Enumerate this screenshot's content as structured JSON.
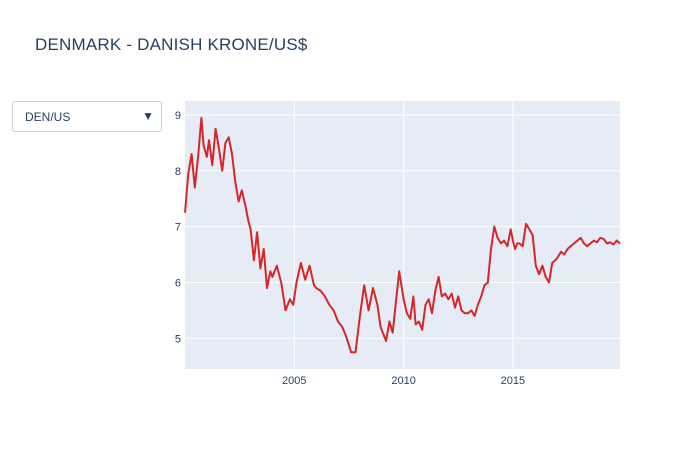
{
  "header": {
    "title": "DENMARK - DANISH KRONE/US$"
  },
  "selector": {
    "selected": "DEN/US",
    "arrow_icon": "triangle-down-icon"
  },
  "chart_data": {
    "type": "line",
    "title": "DENMARK - DANISH KRONE/US$",
    "xlabel": "",
    "ylabel": "",
    "xlim": [
      2000.0,
      2019.9
    ],
    "ylim": [
      4.45,
      9.25
    ],
    "x_ticks": [
      2005,
      2010,
      2015
    ],
    "x_tick_labels": [
      "2005",
      "2010",
      "2015"
    ],
    "y_ticks": [
      5,
      6,
      7,
      8,
      9
    ],
    "y_tick_labels": [
      "5",
      "6",
      "7",
      "8",
      "9"
    ],
    "grid": true,
    "legend": "none",
    "colors": {
      "line": "#d62728",
      "plot_bg": "#e5ecf6",
      "grid": "#ffffff"
    },
    "series": [
      {
        "x": [
          2000.0,
          2000.15,
          2000.3,
          2000.45,
          2000.6,
          2000.75,
          2000.85,
          2001.0,
          2001.1,
          2001.25,
          2001.4,
          2001.55,
          2001.7,
          2001.85,
          2002.0,
          2002.15,
          2002.3,
          2002.45,
          2002.6,
          2002.75,
          2002.9,
          2003.0,
          2003.15,
          2003.3,
          2003.45,
          2003.6,
          2003.75,
          2003.9,
          2004.0,
          2004.2,
          2004.4,
          2004.6,
          2004.8,
          2004.95,
          2005.1,
          2005.3,
          2005.5,
          2005.7,
          2005.9,
          2006.0,
          2006.2,
          2006.4,
          2006.6,
          2006.8,
          2007.0,
          2007.2,
          2007.4,
          2007.6,
          2007.8,
          2008.0,
          2008.2,
          2008.4,
          2008.6,
          2008.8,
          2008.95,
          2009.1,
          2009.2,
          2009.35,
          2009.5,
          2009.65,
          2009.8,
          2010.0,
          2010.15,
          2010.3,
          2010.45,
          2010.55,
          2010.7,
          2010.85,
          2011.0,
          2011.15,
          2011.3,
          2011.45,
          2011.6,
          2011.75,
          2011.9,
          2012.05,
          2012.2,
          2012.35,
          2012.5,
          2012.65,
          2012.8,
          2012.95,
          2013.1,
          2013.25,
          2013.4,
          2013.55,
          2013.7,
          2013.85,
          2014.0,
          2014.15,
          2014.3,
          2014.45,
          2014.6,
          2014.75,
          2014.9,
          2015.0,
          2015.1,
          2015.2,
          2015.3,
          2015.45,
          2015.6,
          2015.75,
          2015.9,
          2016.05,
          2016.2,
          2016.35,
          2016.5,
          2016.65,
          2016.8,
          2016.95,
          2017.05,
          2017.2,
          2017.35,
          2017.5,
          2017.65,
          2017.8,
          2017.95,
          2018.1,
          2018.25,
          2018.4,
          2018.55,
          2018.7,
          2018.85,
          2019.0,
          2019.15,
          2019.3,
          2019.45,
          2019.6,
          2019.75,
          2019.9
        ],
        "y": [
          7.25,
          7.95,
          8.3,
          7.7,
          8.25,
          8.95,
          8.45,
          8.25,
          8.55,
          8.1,
          8.75,
          8.4,
          8.0,
          8.5,
          8.6,
          8.3,
          7.8,
          7.45,
          7.65,
          7.4,
          7.1,
          6.95,
          6.4,
          6.9,
          6.25,
          6.6,
          5.9,
          6.2,
          6.1,
          6.3,
          6.0,
          5.5,
          5.7,
          5.6,
          6.0,
          6.35,
          6.05,
          6.3,
          5.95,
          5.9,
          5.85,
          5.75,
          5.6,
          5.5,
          5.3,
          5.2,
          5.0,
          4.75,
          4.75,
          5.4,
          5.95,
          5.5,
          5.9,
          5.6,
          5.2,
          5.05,
          4.95,
          5.3,
          5.1,
          5.65,
          6.2,
          5.7,
          5.45,
          5.35,
          5.75,
          5.25,
          5.3,
          5.15,
          5.6,
          5.7,
          5.45,
          5.85,
          6.1,
          5.75,
          5.8,
          5.7,
          5.8,
          5.55,
          5.75,
          5.5,
          5.45,
          5.45,
          5.5,
          5.4,
          5.6,
          5.75,
          5.95,
          6.0,
          6.6,
          7.0,
          6.8,
          6.7,
          6.75,
          6.65,
          6.95,
          6.75,
          6.6,
          6.7,
          6.7,
          6.65,
          7.05,
          6.95,
          6.85,
          6.3,
          6.15,
          6.3,
          6.1,
          6.0,
          6.35,
          6.4,
          6.45,
          6.55,
          6.5,
          6.6,
          6.65,
          6.7,
          6.75,
          6.8,
          6.7,
          6.65,
          6.7,
          6.75,
          6.72,
          6.8,
          6.78,
          6.7,
          6.72,
          6.68,
          6.75,
          6.7
        ]
      }
    ]
  }
}
